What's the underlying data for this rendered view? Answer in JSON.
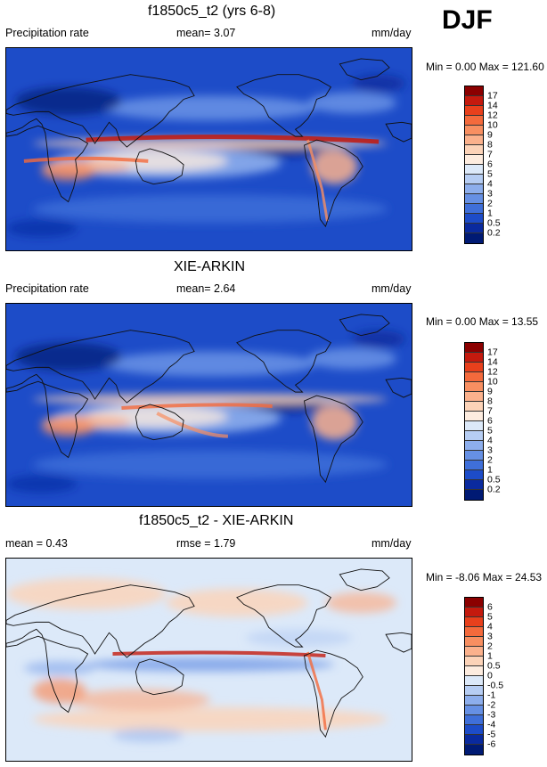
{
  "season": "DJF",
  "panels": [
    {
      "id": "model",
      "title": "f1850c5_t2 (yrs 6-8)",
      "left_label": "Precipitation rate",
      "mid_label": "mean=  3.07",
      "units": "mm/day",
      "minmax": "Min =   0.00 Max = 121.60",
      "colorbar_labels": [
        "17",
        "14",
        "12",
        "10",
        "9",
        "8",
        "7",
        "6",
        "5",
        "4",
        "3",
        "2",
        "1",
        "0.5",
        "0.2"
      ],
      "colors": [
        "#8b0000",
        "#c41a0e",
        "#e8401c",
        "#f46a3c",
        "#f88f61",
        "#fbb18c",
        "#fcd3b8",
        "#fdecdf",
        "#dce9f9",
        "#b6cdf3",
        "#8daeec",
        "#6690e4",
        "#3f6fd9",
        "#1d4cc8",
        "#0a2a9e",
        "#001a74"
      ],
      "palette": "prec"
    },
    {
      "id": "obs",
      "title": "XIE-ARKIN",
      "left_label": "Precipitation rate",
      "mid_label": "mean=  2.64",
      "units": "mm/day",
      "minmax": "Min =   0.00 Max =  13.55",
      "colorbar_labels": [
        "17",
        "14",
        "12",
        "10",
        "9",
        "8",
        "7",
        "6",
        "5",
        "4",
        "3",
        "2",
        "1",
        "0.5",
        "0.2"
      ],
      "colors": [
        "#8b0000",
        "#c41a0e",
        "#e8401c",
        "#f46a3c",
        "#f88f61",
        "#fbb18c",
        "#fcd3b8",
        "#fdecdf",
        "#dce9f9",
        "#b6cdf3",
        "#8daeec",
        "#6690e4",
        "#3f6fd9",
        "#1d4cc8",
        "#0a2a9e",
        "#001a74"
      ],
      "palette": "prec"
    },
    {
      "id": "diff",
      "title": "f1850c5_t2 - XIE-ARKIN",
      "left_label": "mean =   0.43",
      "mid_label": "rmse =   1.79",
      "units": "mm/day",
      "minmax": "Min =  -8.06 Max =  24.53",
      "colorbar_labels": [
        "6",
        "5",
        "4",
        "3",
        "2",
        "1",
        "0.5",
        "0",
        "-0.5",
        "-1",
        "-2",
        "-3",
        "-4",
        "-5",
        "-6"
      ],
      "colors": [
        "#8b0000",
        "#c41a0e",
        "#e8401c",
        "#f46a3c",
        "#f88f61",
        "#fbb18c",
        "#fcd3b8",
        "#fdecdf",
        "#dce9f9",
        "#b6cdf3",
        "#8daeec",
        "#6690e4",
        "#3f6fd9",
        "#1d4cc8",
        "#0a2a9e",
        "#001a74"
      ],
      "palette": "diff"
    }
  ]
}
